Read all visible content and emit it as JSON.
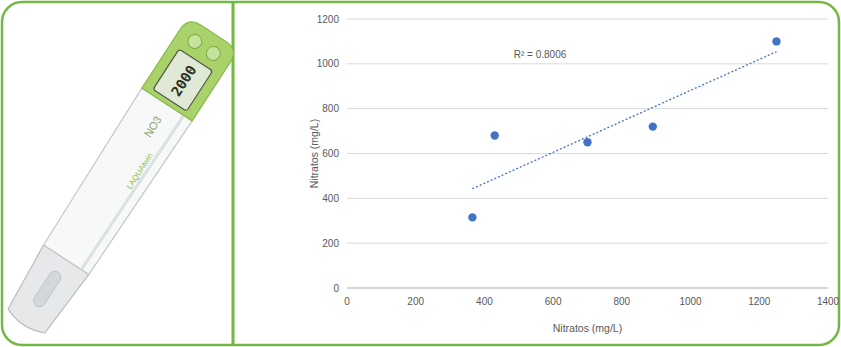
{
  "chart_data": {
    "type": "scatter",
    "annotation": "R² = 0.8006",
    "x_label": "Nitratos (mg/L)",
    "y_label": "Nitratos (mg/L)",
    "x": [
      365,
      430,
      700,
      890,
      1250
    ],
    "values": [
      315,
      680,
      650,
      720,
      1100
    ],
    "color": "#4472c4",
    "marker": "circle",
    "xlim": [
      0,
      1400
    ],
    "xticks": [
      0,
      200,
      400,
      600,
      800,
      1000,
      1200,
      1400
    ],
    "ylim": [
      0,
      1200
    ],
    "yticks": [
      0,
      200,
      400,
      600,
      800,
      1000,
      1200
    ],
    "grid": true
  },
  "device": {
    "label": "NO3",
    "brand": "LAQUAtwin",
    "display": "2000"
  }
}
